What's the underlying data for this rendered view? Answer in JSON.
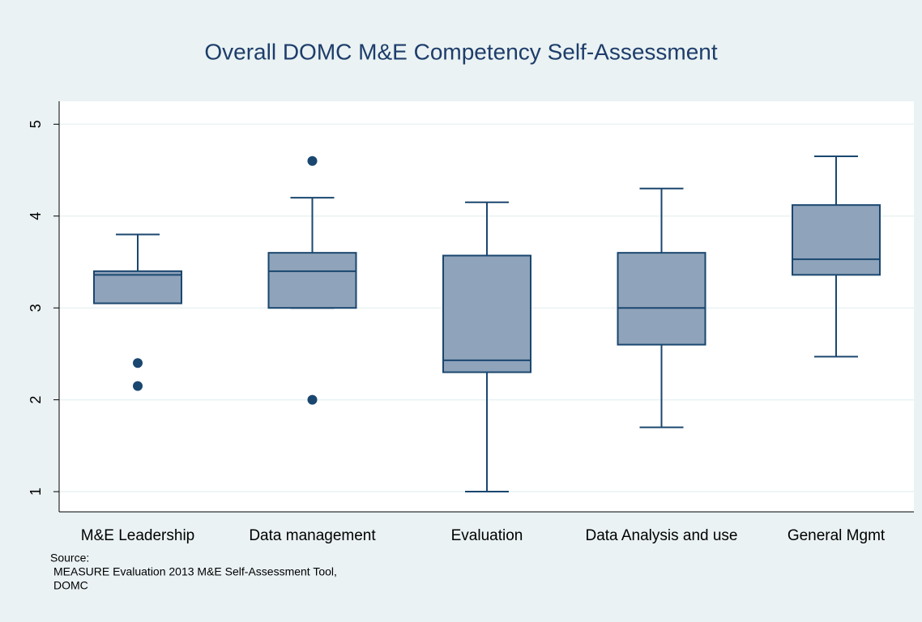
{
  "chart_data": {
    "type": "box",
    "title": "Overall DOMC M&E Competency Self-Assessment",
    "categories": [
      "M&E Leadership",
      "Data management",
      "Evaluation",
      "Data Analysis and use",
      "General Mgmt"
    ],
    "boxes": [
      {
        "min": 3.05,
        "q1": 3.05,
        "median": 3.36,
        "q3": 3.4,
        "max": 3.8,
        "outliers": [
          2.4,
          2.15
        ]
      },
      {
        "min": 3.0,
        "q1": 3.0,
        "median": 3.4,
        "q3": 3.6,
        "max": 4.2,
        "outliers": [
          4.6,
          2.0
        ]
      },
      {
        "min": 1.0,
        "q1": 2.3,
        "median": 2.43,
        "q3": 3.57,
        "max": 4.15,
        "outliers": []
      },
      {
        "min": 1.7,
        "q1": 2.6,
        "median": 3.0,
        "q3": 3.6,
        "max": 4.3,
        "outliers": []
      },
      {
        "min": 2.47,
        "q1": 3.36,
        "median": 3.53,
        "q3": 4.12,
        "max": 4.65,
        "outliers": []
      }
    ],
    "color": "#8fa3ba",
    "line_color": "#1a476f",
    "ylim": [
      0.78,
      5.25
    ],
    "yticks": [
      1,
      2,
      3,
      4,
      5
    ],
    "grid": true,
    "notes": [
      "Source:",
      "MEASURE Evaluation 2013 M&E Self-Assessment Tool,",
      "DOMC"
    ]
  }
}
